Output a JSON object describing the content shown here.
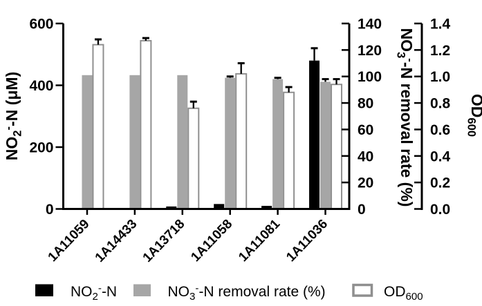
{
  "chart_data": {
    "type": "bar",
    "categories": [
      "1A11059",
      "1A14433",
      "1A13718",
      "1A11058",
      "1A11081",
      "1A11036"
    ],
    "series": [
      {
        "name": "NO2--N",
        "axis": "left",
        "color": "#000000",
        "values": [
          2,
          1,
          8,
          16,
          10,
          480
        ],
        "errors": [
          0,
          0,
          0,
          0,
          0,
          40
        ]
      },
      {
        "name": "NO3--N removal rate (%)",
        "axis": "removal",
        "color": "#a6a6a6",
        "values": [
          101,
          101,
          101,
          99,
          98,
          96
        ],
        "errors": [
          0,
          0,
          0,
          1,
          1,
          2
        ]
      },
      {
        "name": "OD600",
        "axis": "od",
        "color": "#ffffff",
        "border": "#8f8f8f",
        "values": [
          1.24,
          1.27,
          0.76,
          1.02,
          0.88,
          0.94
        ],
        "errors": [
          0.04,
          0.02,
          0.05,
          0.08,
          0.04,
          0.04
        ]
      }
    ],
    "axes": {
      "left": {
        "min": 0,
        "max": 600,
        "step": 200,
        "decimals": 0,
        "label": [
          {
            "t": "NO"
          },
          {
            "t": "2",
            "sub": true
          },
          {
            "t": "-",
            "sup": true
          },
          {
            "t": "-N (μM)"
          }
        ]
      },
      "removal": {
        "min": 0,
        "max": 140,
        "step": 20,
        "decimals": 0,
        "label": [
          {
            "t": "NO"
          },
          {
            "t": "3",
            "sub": true
          },
          {
            "t": "-",
            "sup": true
          },
          {
            "t": "-N removal rate (%)"
          }
        ]
      },
      "od": {
        "min": 0,
        "max": 1.4,
        "step": 0.2,
        "decimals": 1,
        "label": [
          {
            "t": "OD"
          },
          {
            "t": "600",
            "sub": true
          }
        ]
      }
    },
    "legend": [
      {
        "swatch": "#000000",
        "border": "none",
        "label": [
          {
            "t": "NO"
          },
          {
            "t": "2",
            "sub": true
          },
          {
            "t": "-",
            "sup": true
          },
          {
            "t": "-N"
          }
        ]
      },
      {
        "swatch": "#a6a6a6",
        "border": "none",
        "label": [
          {
            "t": "NO"
          },
          {
            "t": "3",
            "sub": true
          },
          {
            "t": "-",
            "sup": true
          },
          {
            "t": "-N removal rate (%)"
          }
        ]
      },
      {
        "swatch": "#ffffff",
        "border": "#8f8f8f",
        "label": [
          {
            "t": "OD"
          },
          {
            "t": "600",
            "sub": true
          }
        ]
      }
    ]
  }
}
